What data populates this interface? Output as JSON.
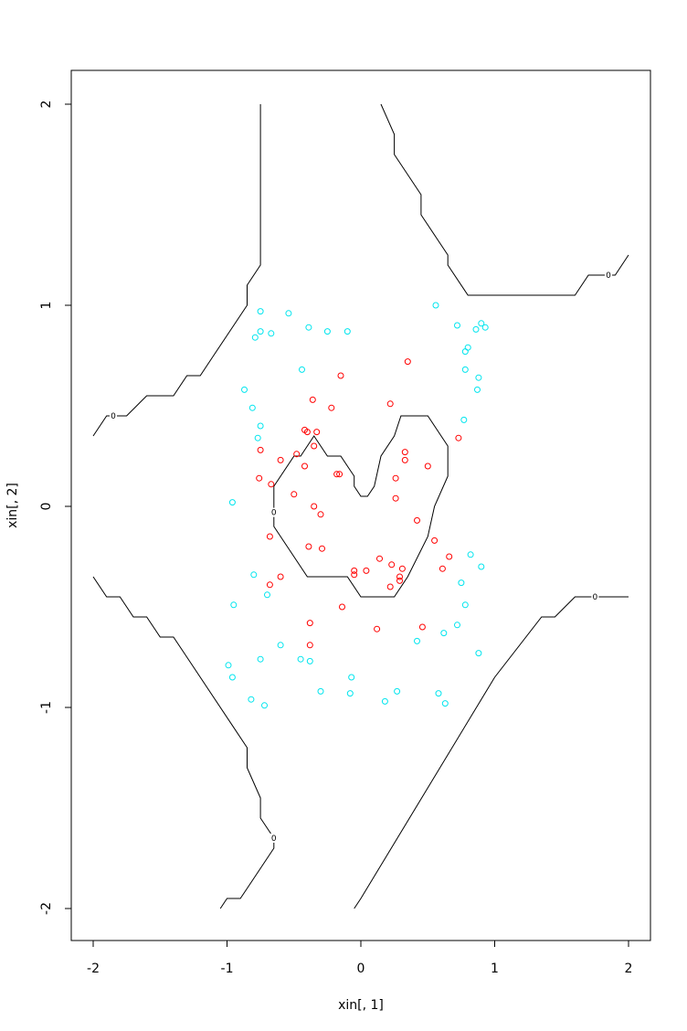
{
  "chart_data": {
    "type": "scatter",
    "title": "",
    "xlabel": "xin[, 1]",
    "ylabel": "xin[, 2]",
    "xlim": [
      -2.2,
      2.2
    ],
    "ylim": [
      -2.15,
      2.15
    ],
    "xticks": [
      "-2",
      "-1",
      "0",
      "1",
      "2"
    ],
    "yticks": [
      "-2",
      "-1",
      "0",
      "1",
      "2"
    ],
    "grid": false,
    "legend": "none",
    "series": [
      {
        "color": "#ff0000",
        "marker": "open-circle",
        "points": [
          [
            0.35,
            0.72
          ],
          [
            -0.15,
            0.65
          ],
          [
            -0.36,
            0.53
          ],
          [
            0.22,
            0.51
          ],
          [
            -0.22,
            0.49
          ],
          [
            -0.42,
            0.38
          ],
          [
            -0.4,
            0.37
          ],
          [
            -0.33,
            0.37
          ],
          [
            0.73,
            0.34
          ],
          [
            -0.35,
            0.3
          ],
          [
            -0.75,
            0.28
          ],
          [
            0.33,
            0.27
          ],
          [
            -0.48,
            0.26
          ],
          [
            -0.6,
            0.23
          ],
          [
            0.33,
            0.23
          ],
          [
            -0.42,
            0.2
          ],
          [
            0.5,
            0.2
          ],
          [
            -0.18,
            0.16
          ],
          [
            -0.16,
            0.16
          ],
          [
            -0.76,
            0.14
          ],
          [
            0.26,
            0.14
          ],
          [
            -0.67,
            0.11
          ],
          [
            -0.5,
            0.06
          ],
          [
            0.26,
            0.04
          ],
          [
            -0.35,
            0.0
          ],
          [
            -0.3,
            -0.04
          ],
          [
            0.42,
            -0.07
          ],
          [
            -0.68,
            -0.15
          ],
          [
            0.55,
            -0.17
          ],
          [
            -0.39,
            -0.2
          ],
          [
            -0.29,
            -0.21
          ],
          [
            0.66,
            -0.25
          ],
          [
            0.14,
            -0.26
          ],
          [
            0.23,
            -0.29
          ],
          [
            0.31,
            -0.31
          ],
          [
            0.61,
            -0.31
          ],
          [
            -0.05,
            -0.32
          ],
          [
            0.04,
            -0.32
          ],
          [
            -0.05,
            -0.34
          ],
          [
            0.29,
            -0.35
          ],
          [
            -0.6,
            -0.35
          ],
          [
            0.29,
            -0.37
          ],
          [
            -0.68,
            -0.39
          ],
          [
            0.22,
            -0.4
          ],
          [
            -0.14,
            -0.5
          ],
          [
            -0.38,
            -0.58
          ],
          [
            0.46,
            -0.6
          ],
          [
            0.12,
            -0.61
          ],
          [
            -0.38,
            -0.69
          ]
        ]
      },
      {
        "color": "#00e5ee",
        "marker": "open-circle",
        "points": [
          [
            0.56,
            1.0
          ],
          [
            -0.75,
            0.97
          ],
          [
            -0.54,
            0.96
          ],
          [
            0.9,
            0.91
          ],
          [
            0.72,
            0.9
          ],
          [
            -0.39,
            0.89
          ],
          [
            0.93,
            0.89
          ],
          [
            0.86,
            0.88
          ],
          [
            -0.75,
            0.87
          ],
          [
            -0.25,
            0.87
          ],
          [
            -0.1,
            0.87
          ],
          [
            -0.67,
            0.86
          ],
          [
            -0.79,
            0.84
          ],
          [
            0.8,
            0.79
          ],
          [
            0.78,
            0.77
          ],
          [
            -0.44,
            0.68
          ],
          [
            0.78,
            0.68
          ],
          [
            0.88,
            0.64
          ],
          [
            -0.87,
            0.58
          ],
          [
            0.87,
            0.58
          ],
          [
            -0.81,
            0.49
          ],
          [
            0.77,
            0.43
          ],
          [
            -0.75,
            0.4
          ],
          [
            -0.77,
            0.34
          ],
          [
            -0.96,
            0.02
          ],
          [
            0.82,
            -0.24
          ],
          [
            0.9,
            -0.3
          ],
          [
            -0.8,
            -0.34
          ],
          [
            0.75,
            -0.38
          ],
          [
            -0.7,
            -0.44
          ],
          [
            -0.95,
            -0.49
          ],
          [
            0.78,
            -0.49
          ],
          [
            0.72,
            -0.59
          ],
          [
            0.62,
            -0.63
          ],
          [
            0.42,
            -0.67
          ],
          [
            -0.6,
            -0.69
          ],
          [
            0.88,
            -0.73
          ],
          [
            -0.45,
            -0.76
          ],
          [
            -0.38,
            -0.77
          ],
          [
            -0.75,
            -0.76
          ],
          [
            -0.99,
            -0.79
          ],
          [
            -0.96,
            -0.85
          ],
          [
            -0.07,
            -0.85
          ],
          [
            -0.3,
            -0.92
          ],
          [
            0.27,
            -0.92
          ],
          [
            0.58,
            -0.93
          ],
          [
            -0.08,
            -0.93
          ],
          [
            -0.82,
            -0.96
          ],
          [
            0.18,
            -0.97
          ],
          [
            0.63,
            -0.98
          ],
          [
            -0.72,
            -0.99
          ]
        ]
      }
    ],
    "contours": [
      {
        "level_label": "0",
        "label_at": [
          -1.85,
          0.45
        ],
        "points": [
          [
            -2.0,
            0.35
          ],
          [
            -1.9,
            0.45
          ],
          [
            -1.75,
            0.45
          ],
          [
            -1.6,
            0.55
          ],
          [
            -1.4,
            0.55
          ],
          [
            -1.3,
            0.65
          ],
          [
            -1.2,
            0.65
          ],
          [
            -1.1,
            0.75
          ],
          [
            -0.85,
            1.0
          ],
          [
            -0.85,
            1.1
          ],
          [
            -0.75,
            1.2
          ],
          [
            -0.75,
            2.0
          ]
        ]
      },
      {
        "level_label": "0",
        "label_at": [
          1.85,
          1.15
        ],
        "points": [
          [
            0.15,
            2.0
          ],
          [
            0.25,
            1.85
          ],
          [
            0.25,
            1.75
          ],
          [
            0.45,
            1.55
          ],
          [
            0.45,
            1.45
          ],
          [
            0.65,
            1.25
          ],
          [
            0.65,
            1.2
          ],
          [
            0.8,
            1.05
          ],
          [
            1.6,
            1.05
          ],
          [
            1.7,
            1.15
          ],
          [
            1.9,
            1.15
          ],
          [
            2.0,
            1.25
          ]
        ]
      },
      {
        "level_label": "0",
        "label_at": [
          -0.65,
          -1.65
        ],
        "points": [
          [
            -2.0,
            -0.35
          ],
          [
            -1.9,
            -0.45
          ],
          [
            -1.8,
            -0.45
          ],
          [
            -1.7,
            -0.55
          ],
          [
            -1.6,
            -0.55
          ],
          [
            -1.5,
            -0.65
          ],
          [
            -1.4,
            -0.65
          ],
          [
            -1.3,
            -0.75
          ],
          [
            -0.85,
            -1.2
          ],
          [
            -0.85,
            -1.3
          ],
          [
            -0.75,
            -1.45
          ],
          [
            -0.75,
            -1.55
          ],
          [
            -0.65,
            -1.65
          ],
          [
            -0.65,
            -1.7
          ],
          [
            -0.85,
            -1.9
          ],
          [
            -0.9,
            -1.95
          ],
          [
            -1.0,
            -1.95
          ],
          [
            -1.05,
            -2.0
          ]
        ]
      },
      {
        "level_label": "0",
        "label_at": [
          1.75,
          -0.45
        ],
        "points": [
          [
            -0.05,
            -2.0
          ],
          [
            0.0,
            -1.95
          ],
          [
            1.0,
            -0.85
          ],
          [
            1.35,
            -0.55
          ],
          [
            1.45,
            -0.55
          ],
          [
            1.6,
            -0.45
          ],
          [
            2.0,
            -0.45
          ]
        ]
      },
      {
        "level_label": "0",
        "label_at": [
          -0.65,
          -0.03
        ],
        "points": [
          [
            -0.65,
            0.1
          ],
          [
            -0.5,
            0.25
          ],
          [
            -0.45,
            0.25
          ],
          [
            -0.35,
            0.35
          ],
          [
            -0.25,
            0.25
          ],
          [
            -0.15,
            0.25
          ],
          [
            -0.05,
            0.15
          ],
          [
            -0.05,
            0.1
          ],
          [
            0.0,
            0.05
          ],
          [
            0.05,
            0.05
          ],
          [
            0.1,
            0.1
          ],
          [
            0.15,
            0.25
          ],
          [
            0.25,
            0.35
          ],
          [
            0.3,
            0.45
          ],
          [
            0.5,
            0.45
          ],
          [
            0.65,
            0.3
          ],
          [
            0.65,
            0.15
          ],
          [
            0.55,
            0.0
          ],
          [
            0.5,
            -0.15
          ],
          [
            0.35,
            -0.35
          ],
          [
            0.25,
            -0.45
          ],
          [
            0.0,
            -0.45
          ],
          [
            -0.1,
            -0.35
          ],
          [
            -0.4,
            -0.35
          ],
          [
            -0.65,
            -0.1
          ],
          [
            -0.65,
            0.1
          ]
        ]
      }
    ]
  }
}
